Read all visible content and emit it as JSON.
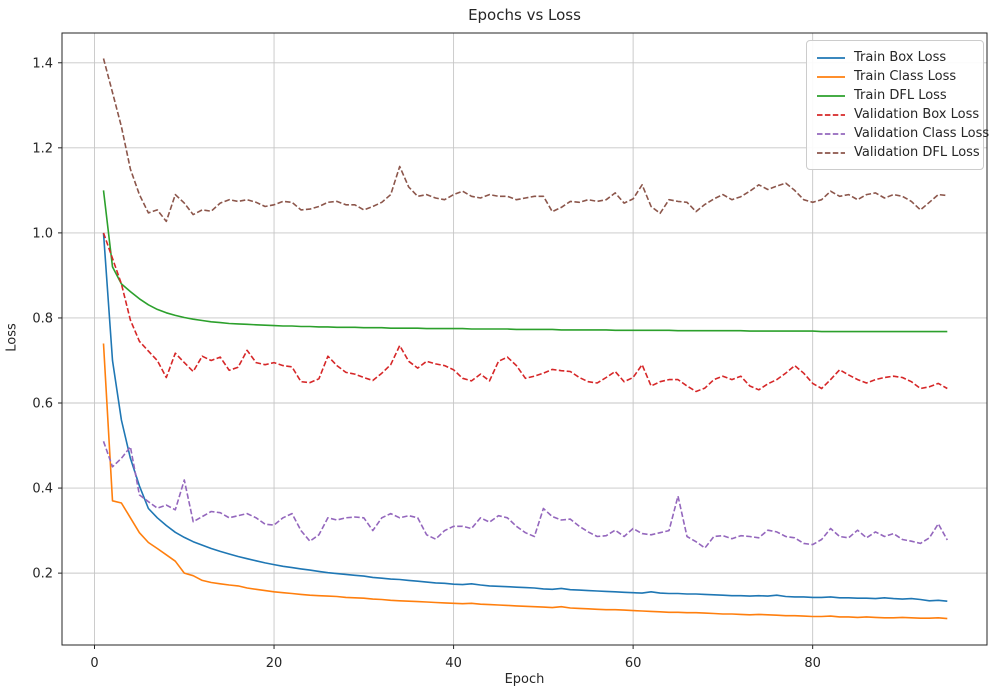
{
  "chart_data": {
    "type": "line",
    "title": "Epochs vs Loss",
    "xlabel": "Epoch",
    "ylabel": "Loss",
    "grid": true,
    "legend_position": "upper right",
    "xlim": [
      -3.62,
      99.42
    ],
    "ylim": [
      0.031,
      1.47
    ],
    "x_ticks": [
      0,
      20,
      40,
      60,
      80
    ],
    "y_ticks": [
      0.2,
      0.4,
      0.6,
      0.8,
      1.0,
      1.2,
      1.4
    ],
    "grid_color": "#c6c6c6",
    "axis_color": "#262626",
    "x": [
      1,
      2,
      3,
      4,
      5,
      6,
      7,
      8,
      9,
      10,
      11,
      12,
      13,
      14,
      15,
      16,
      17,
      18,
      19,
      20,
      21,
      22,
      23,
      24,
      25,
      26,
      27,
      28,
      29,
      30,
      31,
      32,
      33,
      34,
      35,
      36,
      37,
      38,
      39,
      40,
      41,
      42,
      43,
      44,
      45,
      46,
      47,
      48,
      49,
      50,
      51,
      52,
      53,
      54,
      55,
      56,
      57,
      58,
      59,
      60,
      61,
      62,
      63,
      64,
      65,
      66,
      67,
      68,
      69,
      70,
      71,
      72,
      73,
      74,
      75,
      76,
      77,
      78,
      79,
      80,
      81,
      82,
      83,
      84,
      85,
      86,
      87,
      88,
      89,
      90,
      91,
      92,
      93,
      94,
      95
    ],
    "series": [
      {
        "name": "Train Box Loss",
        "color": "#1f77b4",
        "style": "solid",
        "values": [
          1.0,
          0.7,
          0.56,
          0.47,
          0.405,
          0.352,
          0.33,
          0.312,
          0.296,
          0.284,
          0.274,
          0.266,
          0.258,
          0.251,
          0.245,
          0.239,
          0.234,
          0.229,
          0.224,
          0.22,
          0.216,
          0.213,
          0.21,
          0.207,
          0.204,
          0.201,
          0.199,
          0.197,
          0.195,
          0.193,
          0.19,
          0.188,
          0.186,
          0.185,
          0.183,
          0.181,
          0.179,
          0.177,
          0.176,
          0.174,
          0.173,
          0.175,
          0.172,
          0.17,
          0.169,
          0.168,
          0.167,
          0.166,
          0.165,
          0.163,
          0.162,
          0.164,
          0.161,
          0.16,
          0.159,
          0.158,
          0.157,
          0.156,
          0.155,
          0.154,
          0.153,
          0.156,
          0.153,
          0.152,
          0.152,
          0.151,
          0.151,
          0.15,
          0.149,
          0.148,
          0.147,
          0.147,
          0.146,
          0.147,
          0.146,
          0.148,
          0.145,
          0.144,
          0.144,
          0.143,
          0.143,
          0.144,
          0.142,
          0.142,
          0.141,
          0.141,
          0.14,
          0.142,
          0.14,
          0.139,
          0.14,
          0.138,
          0.135,
          0.136,
          0.134
        ]
      },
      {
        "name": "Train Class Loss",
        "color": "#ff7f0e",
        "style": "solid",
        "values": [
          0.74,
          0.37,
          0.365,
          0.33,
          0.295,
          0.272,
          0.258,
          0.243,
          0.228,
          0.2,
          0.194,
          0.183,
          0.178,
          0.175,
          0.172,
          0.17,
          0.165,
          0.162,
          0.159,
          0.156,
          0.154,
          0.152,
          0.15,
          0.148,
          0.147,
          0.146,
          0.145,
          0.143,
          0.142,
          0.141,
          0.139,
          0.138,
          0.136,
          0.135,
          0.134,
          0.133,
          0.132,
          0.131,
          0.13,
          0.129,
          0.128,
          0.129,
          0.127,
          0.126,
          0.125,
          0.124,
          0.123,
          0.122,
          0.121,
          0.12,
          0.119,
          0.121,
          0.118,
          0.117,
          0.116,
          0.115,
          0.114,
          0.114,
          0.113,
          0.112,
          0.111,
          0.11,
          0.109,
          0.108,
          0.108,
          0.107,
          0.107,
          0.106,
          0.105,
          0.104,
          0.104,
          0.103,
          0.102,
          0.103,
          0.102,
          0.101,
          0.1,
          0.1,
          0.099,
          0.098,
          0.098,
          0.099,
          0.097,
          0.097,
          0.096,
          0.097,
          0.096,
          0.095,
          0.095,
          0.096,
          0.095,
          0.094,
          0.094,
          0.095,
          0.093
        ]
      },
      {
        "name": "Train DFL Loss",
        "color": "#2ca02c",
        "style": "solid",
        "values": [
          1.1,
          0.92,
          0.88,
          0.862,
          0.845,
          0.831,
          0.82,
          0.812,
          0.806,
          0.801,
          0.797,
          0.794,
          0.791,
          0.789,
          0.787,
          0.786,
          0.785,
          0.784,
          0.783,
          0.782,
          0.781,
          0.781,
          0.78,
          0.78,
          0.779,
          0.779,
          0.778,
          0.778,
          0.778,
          0.777,
          0.777,
          0.777,
          0.776,
          0.776,
          0.776,
          0.776,
          0.775,
          0.775,
          0.775,
          0.775,
          0.775,
          0.774,
          0.774,
          0.774,
          0.774,
          0.774,
          0.773,
          0.773,
          0.773,
          0.773,
          0.773,
          0.772,
          0.772,
          0.772,
          0.772,
          0.772,
          0.772,
          0.771,
          0.771,
          0.771,
          0.771,
          0.771,
          0.771,
          0.771,
          0.77,
          0.77,
          0.77,
          0.77,
          0.77,
          0.77,
          0.77,
          0.77,
          0.769,
          0.769,
          0.769,
          0.769,
          0.769,
          0.769,
          0.769,
          0.769,
          0.768,
          0.768,
          0.768,
          0.768,
          0.768,
          0.768,
          0.768,
          0.768,
          0.768,
          0.768,
          0.768,
          0.768,
          0.768,
          0.768,
          0.768
        ]
      },
      {
        "name": "Validation Box Loss",
        "color": "#d62728",
        "style": "dashed",
        "values": [
          1.0,
          0.94,
          0.88,
          0.795,
          0.745,
          0.722,
          0.7,
          0.66,
          0.717,
          0.695,
          0.674,
          0.71,
          0.7,
          0.708,
          0.677,
          0.684,
          0.724,
          0.695,
          0.69,
          0.695,
          0.688,
          0.685,
          0.65,
          0.648,
          0.657,
          0.71,
          0.688,
          0.672,
          0.668,
          0.66,
          0.653,
          0.67,
          0.69,
          0.735,
          0.698,
          0.682,
          0.698,
          0.692,
          0.688,
          0.678,
          0.658,
          0.652,
          0.668,
          0.652,
          0.698,
          0.708,
          0.688,
          0.658,
          0.663,
          0.67,
          0.679,
          0.676,
          0.674,
          0.66,
          0.65,
          0.647,
          0.66,
          0.674,
          0.65,
          0.66,
          0.69,
          0.64,
          0.65,
          0.655,
          0.655,
          0.64,
          0.627,
          0.635,
          0.655,
          0.663,
          0.655,
          0.663,
          0.64,
          0.631,
          0.645,
          0.655,
          0.67,
          0.688,
          0.67,
          0.646,
          0.634,
          0.655,
          0.678,
          0.666,
          0.655,
          0.647,
          0.655,
          0.66,
          0.663,
          0.66,
          0.65,
          0.634,
          0.638,
          0.646,
          0.634
        ]
      },
      {
        "name": "Validation Class Loss",
        "color": "#9467bd",
        "style": "dashed",
        "values": [
          0.51,
          0.45,
          0.47,
          0.497,
          0.384,
          0.368,
          0.353,
          0.36,
          0.349,
          0.419,
          0.321,
          0.333,
          0.345,
          0.342,
          0.33,
          0.335,
          0.34,
          0.33,
          0.315,
          0.313,
          0.33,
          0.34,
          0.3,
          0.275,
          0.29,
          0.33,
          0.325,
          0.33,
          0.332,
          0.33,
          0.3,
          0.33,
          0.34,
          0.33,
          0.335,
          0.33,
          0.29,
          0.28,
          0.3,
          0.31,
          0.31,
          0.305,
          0.33,
          0.32,
          0.335,
          0.33,
          0.31,
          0.295,
          0.286,
          0.352,
          0.333,
          0.325,
          0.327,
          0.31,
          0.297,
          0.286,
          0.288,
          0.301,
          0.286,
          0.305,
          0.293,
          0.29,
          0.295,
          0.3,
          0.381,
          0.286,
          0.274,
          0.259,
          0.286,
          0.288,
          0.281,
          0.288,
          0.286,
          0.283,
          0.301,
          0.297,
          0.286,
          0.283,
          0.27,
          0.267,
          0.279,
          0.305,
          0.286,
          0.283,
          0.301,
          0.283,
          0.297,
          0.286,
          0.293,
          0.279,
          0.275,
          0.27,
          0.283,
          0.316,
          0.278
        ]
      },
      {
        "name": "Validation DFL Loss",
        "color": "#8c564b",
        "style": "dashed",
        "values": [
          1.41,
          1.33,
          1.25,
          1.15,
          1.09,
          1.047,
          1.054,
          1.027,
          1.09,
          1.07,
          1.043,
          1.054,
          1.051,
          1.07,
          1.078,
          1.074,
          1.078,
          1.072,
          1.062,
          1.066,
          1.074,
          1.072,
          1.054,
          1.056,
          1.062,
          1.072,
          1.074,
          1.066,
          1.066,
          1.054,
          1.062,
          1.072,
          1.09,
          1.156,
          1.108,
          1.086,
          1.09,
          1.082,
          1.078,
          1.09,
          1.098,
          1.086,
          1.082,
          1.09,
          1.086,
          1.086,
          1.078,
          1.082,
          1.086,
          1.086,
          1.05,
          1.06,
          1.074,
          1.072,
          1.078,
          1.074,
          1.078,
          1.094,
          1.07,
          1.08,
          1.113,
          1.062,
          1.046,
          1.078,
          1.074,
          1.072,
          1.05,
          1.067,
          1.08,
          1.09,
          1.078,
          1.085,
          1.098,
          1.113,
          1.102,
          1.11,
          1.117,
          1.1,
          1.078,
          1.072,
          1.078,
          1.098,
          1.086,
          1.09,
          1.078,
          1.09,
          1.094,
          1.082,
          1.09,
          1.086,
          1.074,
          1.054,
          1.072,
          1.09,
          1.088
        ]
      }
    ]
  }
}
